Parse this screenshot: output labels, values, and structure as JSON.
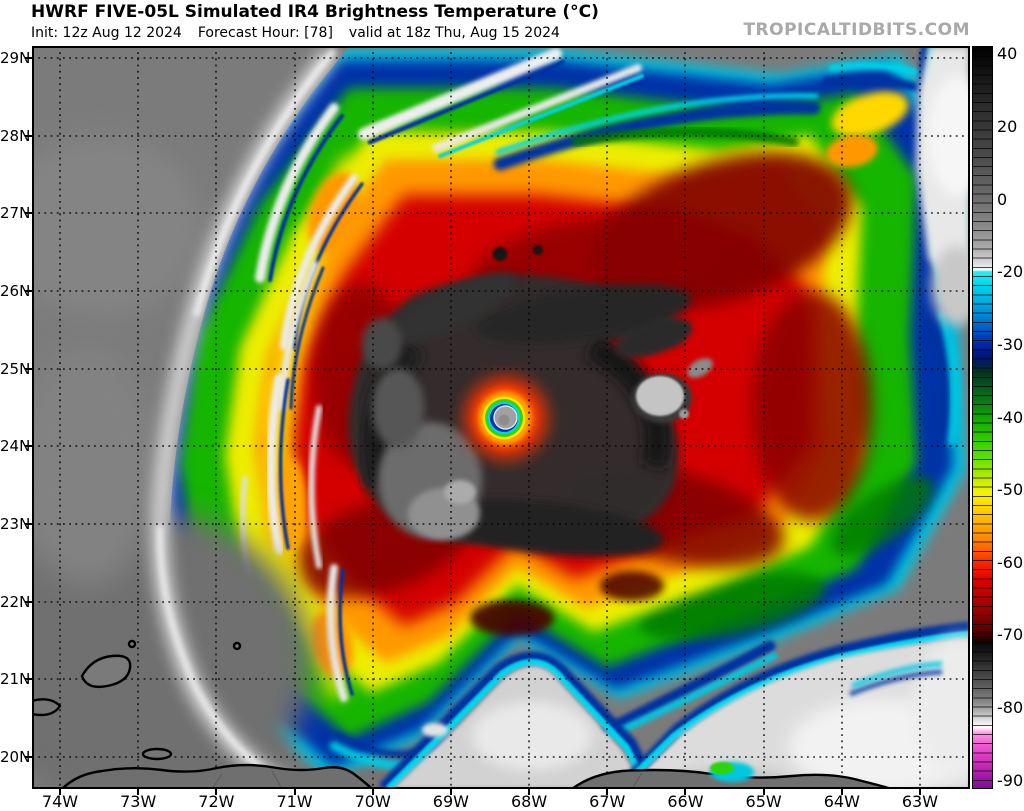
{
  "header": {
    "title": "HWRF FIVE-05L Simulated IR4 Brightness Temperature (°C)",
    "init": "Init: 12z Aug 12 2024",
    "forecast_hour": "Forecast Hour: [78]",
    "valid": "valid at 18z Thu, Aug 15 2024",
    "watermark": "TROPICALTIDBITS.COM"
  },
  "axes": {
    "lat": [
      "29N",
      "28N",
      "27N",
      "26N",
      "25N",
      "24N",
      "23N",
      "22N",
      "21N",
      "20N"
    ],
    "lon": [
      "74W",
      "73W",
      "72W",
      "71W",
      "70W",
      "69W",
      "68W",
      "67W",
      "66W",
      "65W",
      "64W",
      "63W"
    ]
  },
  "colorbar": {
    "unit": "°C",
    "labels": [
      "40",
      "20",
      "0",
      "-20",
      "-30",
      "-40",
      "-50",
      "-60",
      "-70",
      "-80",
      "-90"
    ],
    "stops": [
      [
        0,
        "#000000"
      ],
      [
        4,
        "#161616"
      ],
      [
        8,
        "#2b2b2b"
      ],
      [
        12,
        "#3d3d3d"
      ],
      [
        16,
        "#525252"
      ],
      [
        20,
        "#6b6b6b"
      ],
      [
        24,
        "#878787"
      ],
      [
        27,
        "#a8a8a8"
      ],
      [
        29.3,
        "#dedede"
      ],
      [
        30.1,
        "#f2fefe"
      ],
      [
        30.3,
        "#2af0f0"
      ],
      [
        32,
        "#00d8ee"
      ],
      [
        34,
        "#00b2e2"
      ],
      [
        36,
        "#008cd8"
      ],
      [
        38,
        "#005cc4"
      ],
      [
        40.3,
        "#0024a4"
      ],
      [
        42,
        "#001478"
      ],
      [
        43.8,
        "#03301c"
      ],
      [
        46,
        "#065a22"
      ],
      [
        48,
        "#0a7d12"
      ],
      [
        50,
        "#12a404"
      ],
      [
        52.5,
        "#2cc600"
      ],
      [
        55,
        "#54de00"
      ],
      [
        57.2,
        "#9ae800"
      ],
      [
        59.2,
        "#dff000"
      ],
      [
        60.3,
        "#f6f200"
      ],
      [
        62,
        "#ffd600"
      ],
      [
        64,
        "#ffb200"
      ],
      [
        66,
        "#ff8e00"
      ],
      [
        68,
        "#ff5c00"
      ],
      [
        69.8,
        "#fb2000"
      ],
      [
        72,
        "#de0000"
      ],
      [
        74.5,
        "#b40000"
      ],
      [
        76.5,
        "#8e0000"
      ],
      [
        78.5,
        "#600000"
      ],
      [
        79.8,
        "#270000"
      ],
      [
        80.6,
        "#0c0c0c"
      ],
      [
        82.5,
        "#232323"
      ],
      [
        84.5,
        "#404040"
      ],
      [
        86.5,
        "#616161"
      ],
      [
        88.5,
        "#8a8a8a"
      ],
      [
        89.8,
        "#b6b6b6"
      ],
      [
        91,
        "#e6e6e6"
      ],
      [
        91.8,
        "#ffffff"
      ],
      [
        92.6,
        "#ff96e2"
      ],
      [
        94.2,
        "#ef5cd2"
      ],
      [
        95.8,
        "#dc38c2"
      ],
      [
        97.4,
        "#bc24b2"
      ],
      [
        98.8,
        "#9a14a4"
      ],
      [
        100,
        "#7c1094"
      ]
    ]
  },
  "palette": {
    "environment_gray": "#7b7b7b",
    "cold_ring_red": "#d40000",
    "cdo_charcoal": "#2d2d2d",
    "band_green": "#17b500",
    "band_yellow": "#eded00",
    "band_orange": "#ff9800",
    "edge_navy": "#0030a8",
    "edge_cyan": "#00d2e8",
    "eye_gray": "#9a9a9a"
  }
}
